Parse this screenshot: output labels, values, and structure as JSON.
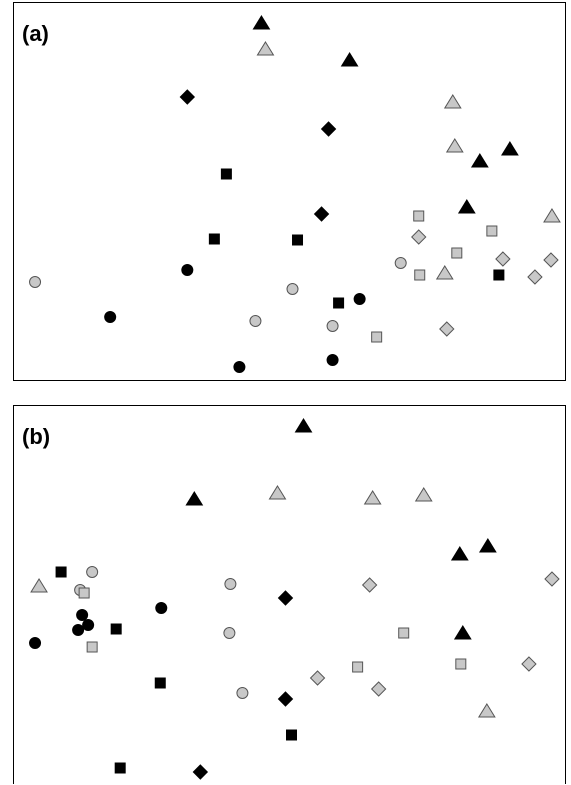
{
  "figure": {
    "panels": [
      {
        "label": "(a)"
      },
      {
        "label": "(b)"
      }
    ]
  },
  "colors": {
    "black": "#000000",
    "gray": "#c8c8c8",
    "stroke": "#222222"
  },
  "chart_data": [
    {
      "type": "scatter",
      "title": "",
      "xlabel": "",
      "ylabel": "",
      "xlim": [
        0,
        550
      ],
      "ylim": [
        0,
        377
      ],
      "grid": false,
      "legend": "none",
      "series": [
        {
          "marker": "circle",
          "fill": "black",
          "points": [
            [
              96,
              63
            ],
            [
              173,
              110
            ],
            [
              225,
              13
            ],
            [
              318,
              20
            ],
            [
              345,
              81
            ]
          ]
        },
        {
          "marker": "circle",
          "fill": "gray",
          "points": [
            [
              21,
              98
            ],
            [
              241,
              59
            ],
            [
              278,
              91
            ],
            [
              318,
              54
            ],
            [
              386,
              117
            ]
          ]
        },
        {
          "marker": "square",
          "fill": "black",
          "points": [
            [
              200,
              141
            ],
            [
              283,
              140
            ],
            [
              212,
              206
            ],
            [
              324,
              77
            ],
            [
              484,
              105
            ]
          ]
        },
        {
          "marker": "square",
          "fill": "gray",
          "points": [
            [
              404,
              164
            ],
            [
              477,
              149
            ],
            [
              442,
              127
            ],
            [
              405,
              105
            ],
            [
              362,
              43
            ]
          ]
        },
        {
          "marker": "diamond",
          "fill": "black",
          "points": [
            [
              173,
              283
            ],
            [
              314,
              251
            ],
            [
              307,
              166
            ]
          ]
        },
        {
          "marker": "diamond",
          "fill": "gray",
          "points": [
            [
              404,
              143
            ],
            [
              488,
              121
            ],
            [
              536,
              120
            ],
            [
              520,
              103
            ],
            [
              432,
              51
            ]
          ]
        },
        {
          "marker": "triangle",
          "fill": "black",
          "points": [
            [
              247,
              357
            ],
            [
              335,
              320
            ],
            [
              465,
              219
            ],
            [
              495,
              231
            ],
            [
              452,
              173
            ]
          ]
        },
        {
          "marker": "triangle",
          "fill": "gray",
          "points": [
            [
              251,
              331
            ],
            [
              438,
              278
            ],
            [
              440,
              234
            ],
            [
              537,
              164
            ],
            [
              430,
              107
            ]
          ]
        }
      ]
    },
    {
      "type": "scatter",
      "title": "",
      "xlabel": "",
      "ylabel": "",
      "xlim": [
        0,
        550
      ],
      "ylim": [
        0,
        377
      ],
      "grid": false,
      "legend": "none",
      "series": [
        {
          "marker": "circle",
          "fill": "black",
          "points": [
            [
              147,
              175
            ],
            [
              68,
              168
            ],
            [
              74,
              158
            ],
            [
              64,
              153
            ],
            [
              21,
              140
            ]
          ]
        },
        {
          "marker": "circle",
          "fill": "gray",
          "points": [
            [
              78,
              211
            ],
            [
              66,
              193
            ],
            [
              216,
              199
            ],
            [
              215,
              150
            ],
            [
              228,
              90
            ]
          ]
        },
        {
          "marker": "square",
          "fill": "black",
          "points": [
            [
              47,
              211
            ],
            [
              102,
              154
            ],
            [
              146,
              100
            ],
            [
              277,
              48
            ],
            [
              106,
              15
            ]
          ]
        },
        {
          "marker": "square",
          "fill": "gray",
          "points": [
            [
              70,
              190
            ],
            [
              78,
              136
            ],
            [
              389,
              150
            ],
            [
              343,
              116
            ],
            [
              446,
              119
            ]
          ]
        },
        {
          "marker": "diamond",
          "fill": "black",
          "points": [
            [
              271,
              185
            ],
            [
              271,
              84
            ],
            [
              186,
              11
            ]
          ]
        },
        {
          "marker": "diamond",
          "fill": "gray",
          "points": [
            [
              355,
              198
            ],
            [
              537,
              204
            ],
            [
              303,
              105
            ],
            [
              364,
              94
            ],
            [
              514,
              119
            ]
          ]
        },
        {
          "marker": "triangle",
          "fill": "black",
          "points": [
            [
              289,
              357
            ],
            [
              180,
              284
            ],
            [
              445,
              229
            ],
            [
              473,
              237
            ],
            [
              448,
              150
            ]
          ]
        },
        {
          "marker": "triangle",
          "fill": "gray",
          "points": [
            [
              263,
              290
            ],
            [
              358,
              285
            ],
            [
              409,
              288
            ],
            [
              25,
              197
            ],
            [
              472,
              72
            ]
          ]
        }
      ]
    }
  ]
}
